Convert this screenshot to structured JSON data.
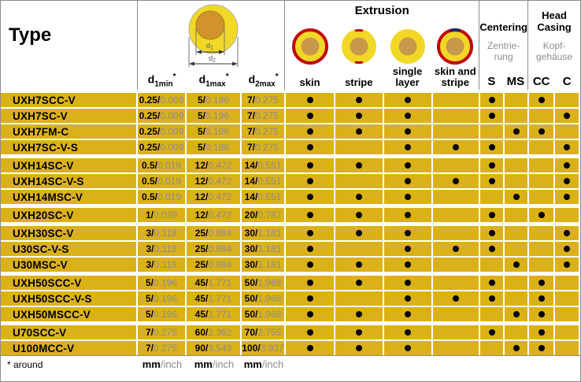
{
  "colors": {
    "row_gold": "#DBB118",
    "icon_yellow": "#F2D826",
    "icon_tan": "#C8994A",
    "icon_red": "#C00707",
    "icon_navy": "#26246B",
    "diagram_orange": "#D2932D",
    "gray_text": "#8C8C8C",
    "border_gray": "#8C8C8C"
  },
  "header": {
    "type_label": "Type",
    "diagram_labels": {
      "d1_base": "d",
      "d1_sub": "1",
      "d2_base": "d",
      "d2_sub": "2"
    },
    "dim_columns": [
      {
        "base": "d",
        "sub": "1min",
        "sup": "*"
      },
      {
        "base": "d",
        "sub": "1max",
        "sup": "*"
      },
      {
        "base": "d",
        "sub": "2max",
        "sup": "*"
      }
    ],
    "extrusion": {
      "title": "Extrusion",
      "columns": [
        {
          "label": "skin",
          "icon": "skin-icon"
        },
        {
          "label": "stripe",
          "icon": "stripe-icon"
        },
        {
          "label": "single layer",
          "icon": "single-layer-icon"
        },
        {
          "label": "skin and stripe",
          "icon": "skin-and-stripe-icon"
        }
      ]
    },
    "centering": {
      "title": "Centering",
      "subtitle_lines": [
        "Zentrie-",
        "rung"
      ],
      "columns": [
        "S",
        "MS"
      ]
    },
    "head_casing": {
      "title_lines": [
        "Head",
        "Casing"
      ],
      "subtitle_lines": [
        "Kopf-",
        "gehäuse"
      ],
      "columns": [
        "CC",
        "C"
      ]
    }
  },
  "mark_column_keys": [
    "skin",
    "stripe",
    "single layer",
    "skin and stripe",
    "S",
    "MS",
    "CC",
    "C"
  ],
  "groups": [
    {
      "rows": [
        {
          "type": "UXH7SCC-V",
          "dims": [
            "0.25/0.009",
            "5/0.196",
            "7/0.275"
          ],
          "marks": [
            1,
            1,
            1,
            0,
            1,
            0,
            1,
            0
          ]
        },
        {
          "type": "UXH7SC-V",
          "dims": [
            "0.25/0.009",
            "5/0.196",
            "7/0.275"
          ],
          "marks": [
            1,
            1,
            1,
            0,
            1,
            0,
            0,
            1
          ]
        },
        {
          "type": "UXH7FM-C",
          "dims": [
            "0.25/0.009",
            "5/0.196",
            "7/0.275"
          ],
          "marks": [
            1,
            1,
            1,
            0,
            0,
            1,
            1,
            0
          ]
        },
        {
          "type": "UXH7SC-V-S",
          "dims": [
            "0.25/0.009",
            "5/0.196",
            "7/0.275"
          ],
          "marks": [
            1,
            0,
            1,
            1,
            1,
            0,
            0,
            1
          ]
        }
      ]
    },
    {
      "rows": [
        {
          "type": "UXH14SC-V",
          "dims": [
            "0.5/0.019",
            "12/0.472",
            "14/0.551"
          ],
          "marks": [
            1,
            1,
            1,
            0,
            1,
            0,
            0,
            1
          ]
        },
        {
          "type": "UXH14SC-V-S",
          "dims": [
            "0.5/0.019",
            "12/0.472",
            "14/0.551"
          ],
          "marks": [
            1,
            0,
            1,
            1,
            1,
            0,
            0,
            1
          ]
        },
        {
          "type": "UXH14MSC-V",
          "dims": [
            "0.5/0.019",
            "12/0.472",
            "14/0.551"
          ],
          "marks": [
            1,
            1,
            1,
            0,
            0,
            1,
            0,
            1
          ]
        }
      ]
    },
    {
      "rows": [
        {
          "type": "UXH20SC-V",
          "dims": [
            "1/0.039",
            "12/0.472",
            "20/0.787"
          ],
          "marks": [
            1,
            1,
            1,
            0,
            1,
            0,
            1,
            0
          ]
        }
      ]
    },
    {
      "rows": [
        {
          "type": "UXH30SC-V",
          "dims": [
            "3/0.118",
            "25/0.984",
            "30/1.181"
          ],
          "marks": [
            1,
            1,
            1,
            0,
            1,
            0,
            0,
            1
          ]
        },
        {
          "type": "U30SC-V-S",
          "dims": [
            "3/0.118",
            "25/0.984",
            "30/1.181"
          ],
          "marks": [
            1,
            0,
            1,
            1,
            1,
            0,
            0,
            1
          ]
        },
        {
          "type": "U30MSC-V",
          "dims": [
            "3/0.118",
            "25/0.984",
            "30/1.181"
          ],
          "marks": [
            1,
            1,
            1,
            0,
            0,
            1,
            0,
            1
          ]
        }
      ]
    },
    {
      "rows": [
        {
          "type": "UXH50SCC-V",
          "dims": [
            "5/0.196",
            "45/1.771",
            "50/1.968"
          ],
          "marks": [
            1,
            1,
            1,
            0,
            1,
            0,
            1,
            0
          ]
        },
        {
          "type": "UXH50SCC-V-S",
          "dims": [
            "5/0.196",
            "45/1.771",
            "50/1.968"
          ],
          "marks": [
            1,
            0,
            1,
            1,
            1,
            0,
            1,
            0
          ]
        },
        {
          "type": "UXH50MSCC-V",
          "dims": [
            "5/0.196",
            "45/1.771",
            "50/1.968"
          ],
          "marks": [
            1,
            1,
            1,
            0,
            0,
            1,
            1,
            0
          ]
        }
      ]
    },
    {
      "rows": [
        {
          "type": "U70SCC-V",
          "dims": [
            "7/0.275",
            "60/2.362",
            "70/2.755"
          ],
          "marks": [
            1,
            1,
            1,
            0,
            1,
            0,
            1,
            0
          ]
        },
        {
          "type": "U100MCC-V",
          "dims": [
            "7/0.275",
            "90/3.543",
            "100/3.937"
          ],
          "marks": [
            1,
            1,
            1,
            0,
            0,
            1,
            1,
            0
          ]
        }
      ]
    }
  ],
  "footer": {
    "note": "* around",
    "units": [
      "mm/inch",
      "mm/inch",
      "mm/inch"
    ]
  }
}
